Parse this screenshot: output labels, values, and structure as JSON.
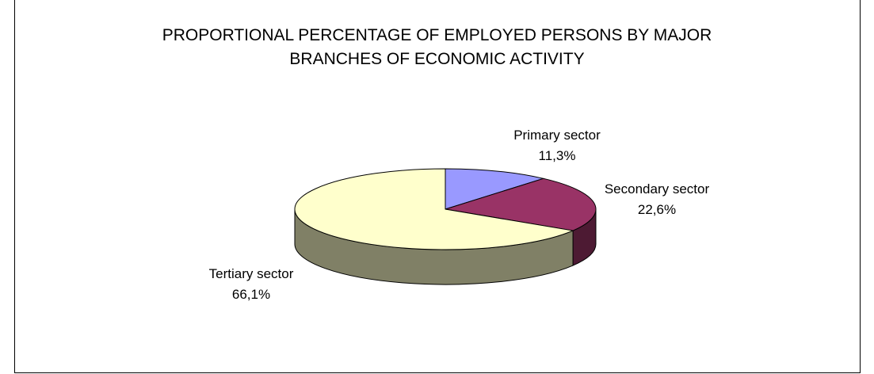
{
  "chart_data": {
    "type": "pie",
    "title_lines": [
      "PROPORTIONAL PERCENTAGE OF EMPLOYED PERSONS BY MAJOR",
      "BRANCHES OF ECONOMIC ACTIVITY"
    ],
    "three_d": true,
    "slices": [
      {
        "label": "Primary sector",
        "value_text": "11,3%",
        "value": 11.3,
        "color": "#9999ff",
        "side_color": "#5a5a99"
      },
      {
        "label": "Secondary sector",
        "value_text": "22,6%",
        "value": 22.6,
        "color": "#993366",
        "side_color": "#4d1a33"
      },
      {
        "label": "Tertiary sector",
        "value_text": "66,1%",
        "value": 66.1,
        "color": "#ffffcc",
        "side_color": "#808066"
      }
    ]
  }
}
